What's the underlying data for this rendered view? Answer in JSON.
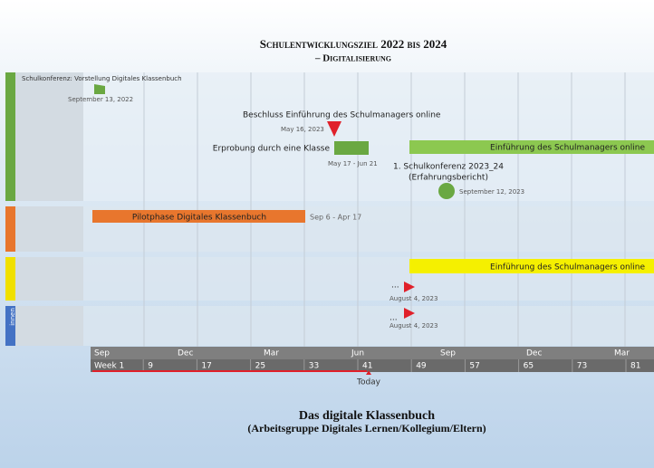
{
  "header": {
    "title": "Schulentwicklungsziel 2022 bis 2024",
    "subtitle": "– Digitalisierung"
  },
  "events": [
    {
      "label": "Schulkonferenz: Vorstellung Digitales Klassenbuch",
      "date": "September 13, 2022"
    },
    {
      "label": "Beschluss Einführung des Schulmanagers online",
      "date": "May 16, 2023"
    },
    {
      "label": "1. Schulkonferenz 2023_24",
      "note": "(Erfahrungsbericht)",
      "date": "September 12, 2023"
    },
    {
      "label": "...",
      "date": "August 4, 2023"
    },
    {
      "label": "...",
      "date": "August 4, 2023"
    }
  ],
  "bars": [
    {
      "label": "Erprobung durch eine Klasse",
      "dates": "May 17 - Jun 21"
    },
    {
      "label": "Einführung des Schulmanagers online"
    },
    {
      "label": "Pilotphase Digitales Klassenbuch",
      "dates": "Sep 6 - Apr 17"
    },
    {
      "label": "Einführung des Schulmanagers online"
    }
  ],
  "row_labels": [
    "innen"
  ],
  "axis": {
    "months": [
      "Sep",
      "Dec",
      "Mar",
      "Jun",
      "Sep",
      "Dec",
      "Mar"
    ],
    "weeks": [
      "Week 1",
      "9",
      "17",
      "25",
      "33",
      "41",
      "49",
      "57",
      "65",
      "73",
      "81"
    ],
    "today": "Today"
  },
  "footer": {
    "title": "Das digitale Klassenbuch",
    "subtitle": "(Arbeitsgruppe Digitales Lernen/Kollegium/Eltern)"
  }
}
